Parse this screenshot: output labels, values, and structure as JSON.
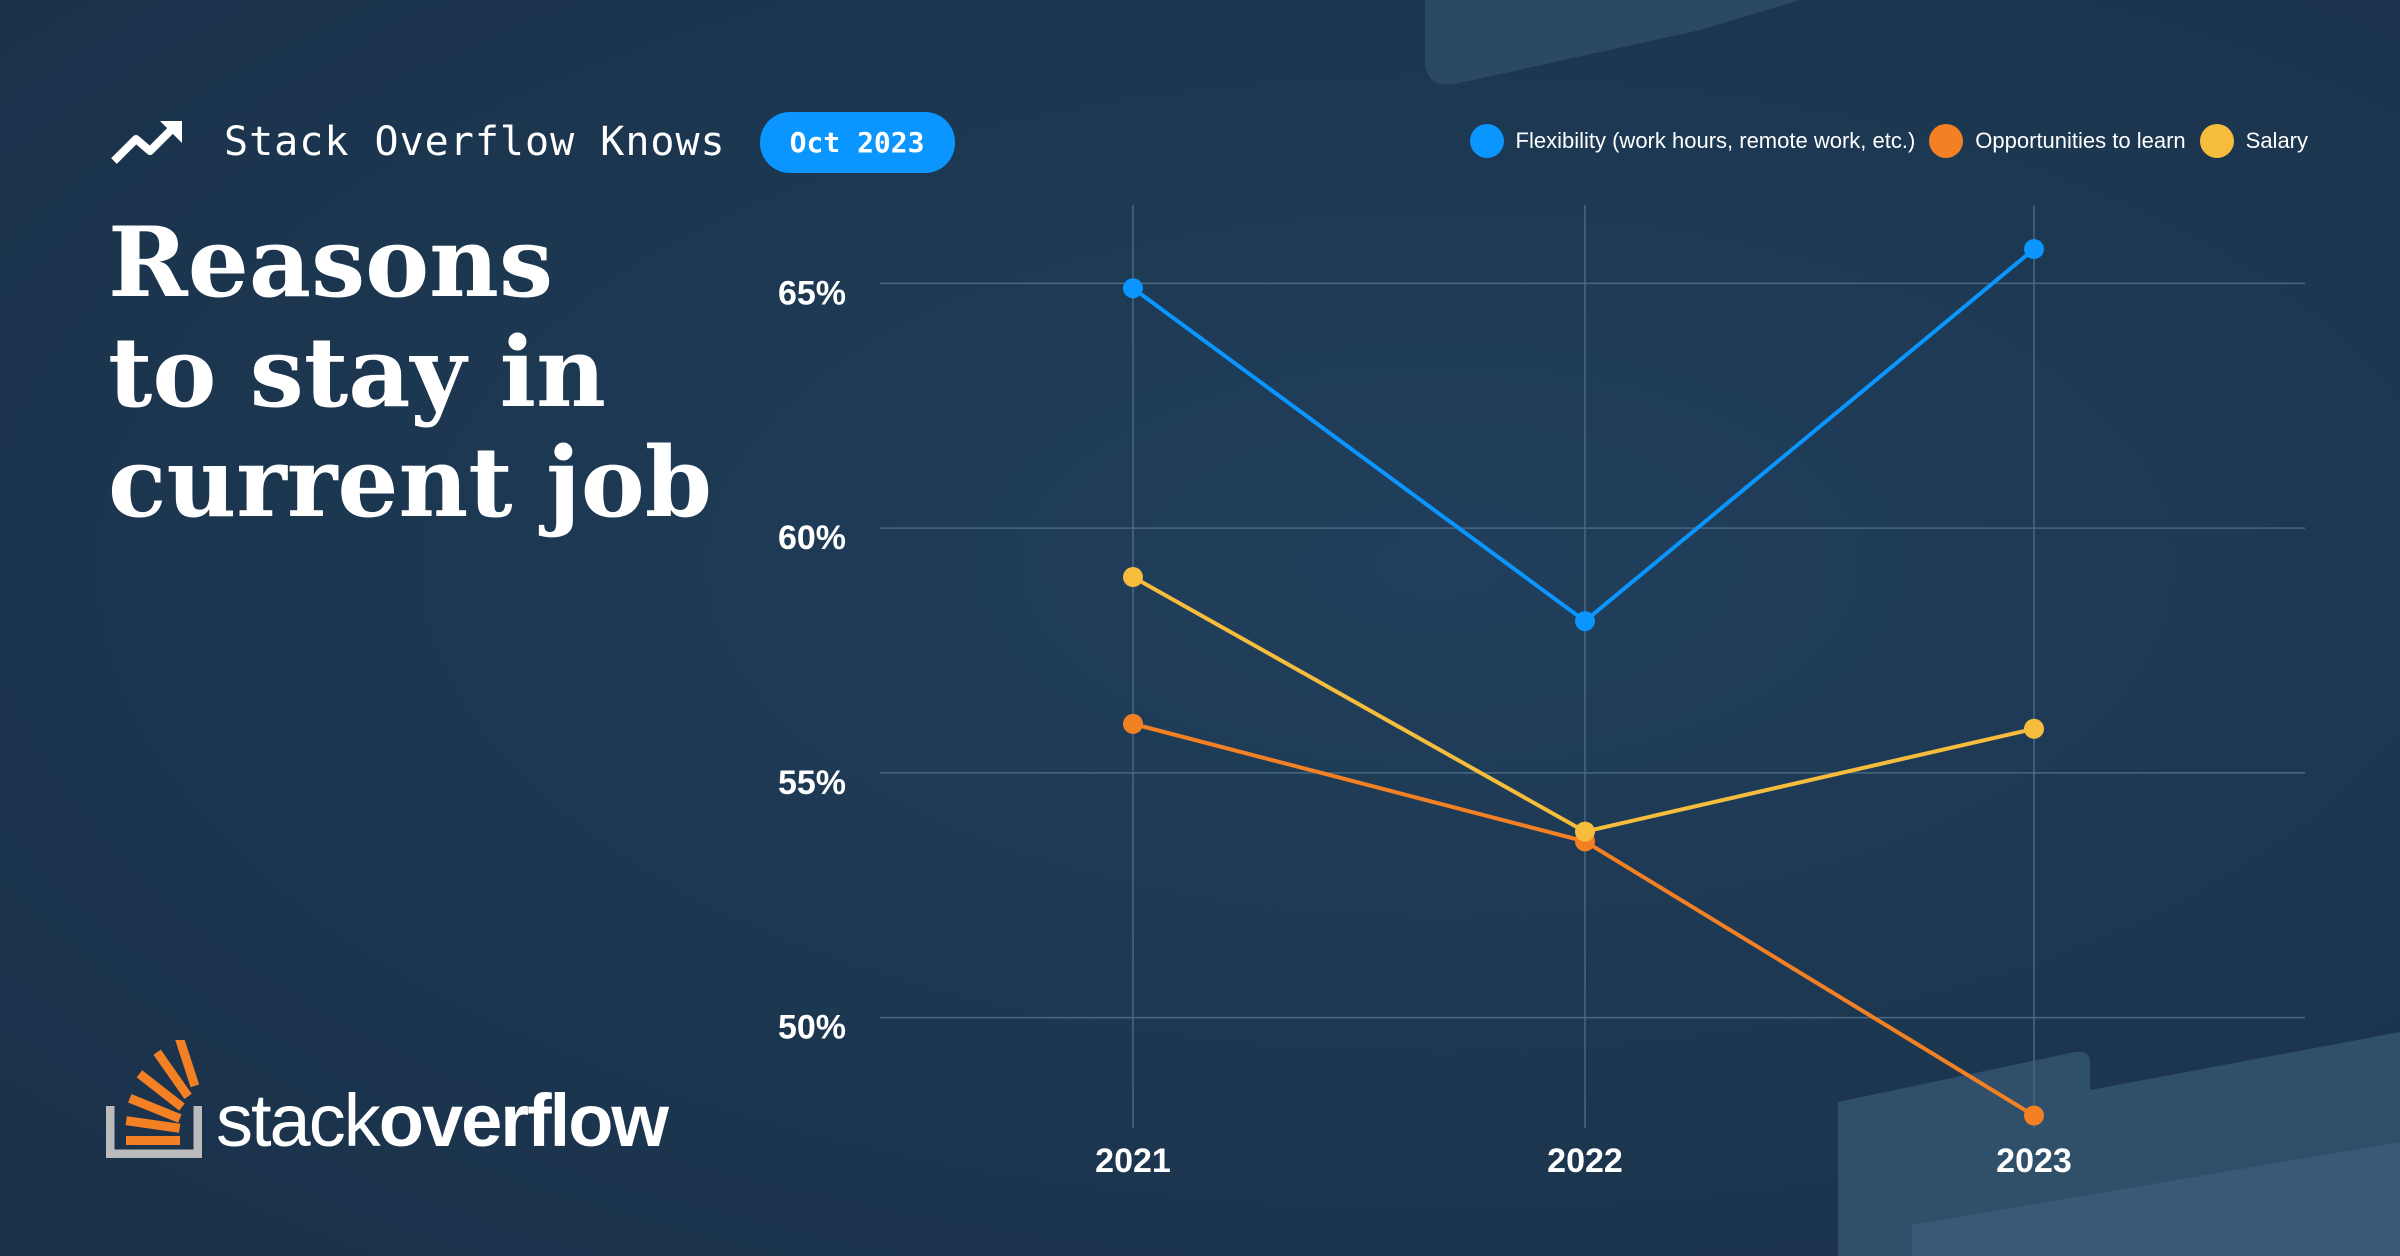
{
  "header": {
    "brand": "Stack Overflow Knows",
    "date_badge": "Oct 2023"
  },
  "title_lines": [
    "Reasons",
    "to stay in",
    "current job"
  ],
  "logo": {
    "word_light": "stack",
    "word_bold": "overflow"
  },
  "colors": {
    "blue": "#0a95ff",
    "orange": "#f48024",
    "yellow": "#f6bc3c",
    "badge": "#0a95ff"
  },
  "icons": {
    "trend": "trending-up-icon",
    "logo": "stack-overflow-logo-icon"
  },
  "chart_data": {
    "type": "line",
    "x": [
      "2021",
      "2022",
      "2023"
    ],
    "series": [
      {
        "name": "Flexibility (work hours, remote work, etc.)",
        "color": "#0a95ff",
        "values": [
          64.9,
          58.1,
          65.7
        ]
      },
      {
        "name": "Opportunities to learn",
        "color": "#f48024",
        "values": [
          56.0,
          53.6,
          48.0
        ]
      },
      {
        "name": "Salary",
        "color": "#f6bc3c",
        "values": [
          59.0,
          53.8,
          55.9
        ]
      }
    ],
    "yticks": [
      "50%",
      "55%",
      "60%",
      "65%"
    ],
    "ytick_values": [
      50,
      55,
      60,
      65
    ],
    "ylim": [
      47.5,
      66.6
    ],
    "grid": true,
    "legend": "top-right"
  }
}
